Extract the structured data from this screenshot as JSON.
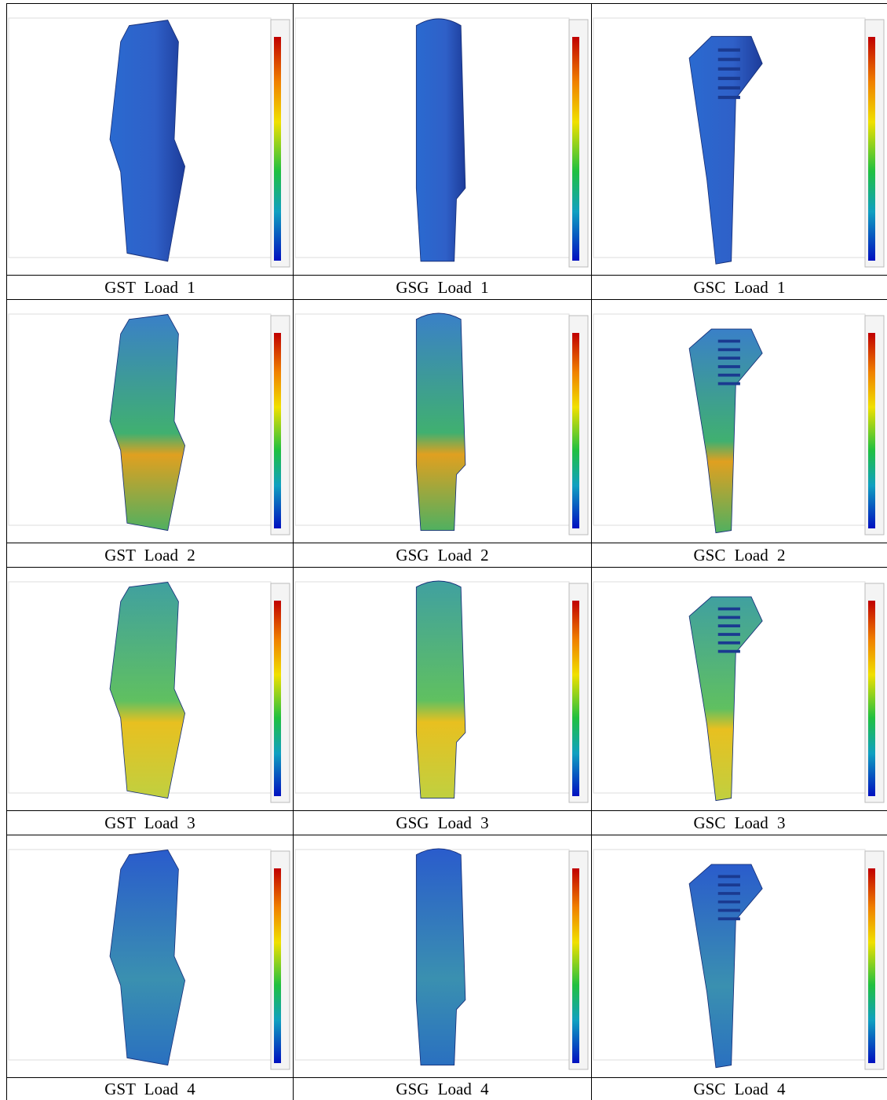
{
  "table": {
    "rows": [
      [
        "GST Load 1",
        "GSG Load 1",
        "GSC Load 1"
      ],
      [
        "GST Load 2",
        "GSG Load 2",
        "GSC Load 2"
      ],
      [
        "GST Load 3",
        "GSG Load 3",
        "GSC Load 3"
      ],
      [
        "GST Load 4",
        "GSG Load 4",
        "GSC Load 4"
      ]
    ]
  }
}
